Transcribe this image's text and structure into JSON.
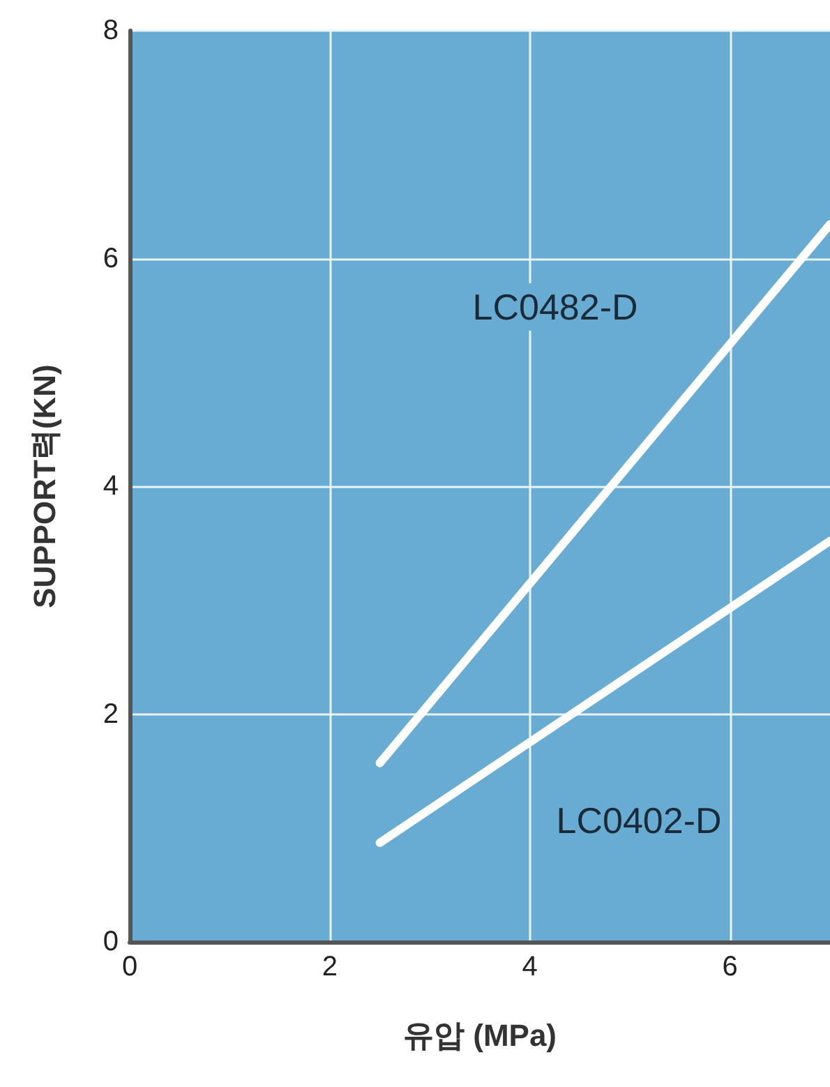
{
  "chart_data": {
    "type": "line",
    "xlabel": "유압 (MPa)",
    "ylabel": "SUPPORT력(KN)",
    "x": [
      2.5,
      7
    ],
    "series": [
      {
        "name": "LC0482-D",
        "color": "#ffffff",
        "values": [
          1.57,
          6.3
        ]
      },
      {
        "name": "LC0402-D",
        "color": "#ffffff",
        "values": [
          0.87,
          3.52
        ]
      }
    ],
    "xlim": [
      0,
      7
    ],
    "xticks": [
      0,
      2,
      4,
      6
    ],
    "ylim": [
      0,
      8
    ],
    "yticks": [
      0,
      2,
      4,
      6,
      8
    ],
    "grid": true,
    "marker": "none",
    "line_style": "solid",
    "legend": false
  }
}
